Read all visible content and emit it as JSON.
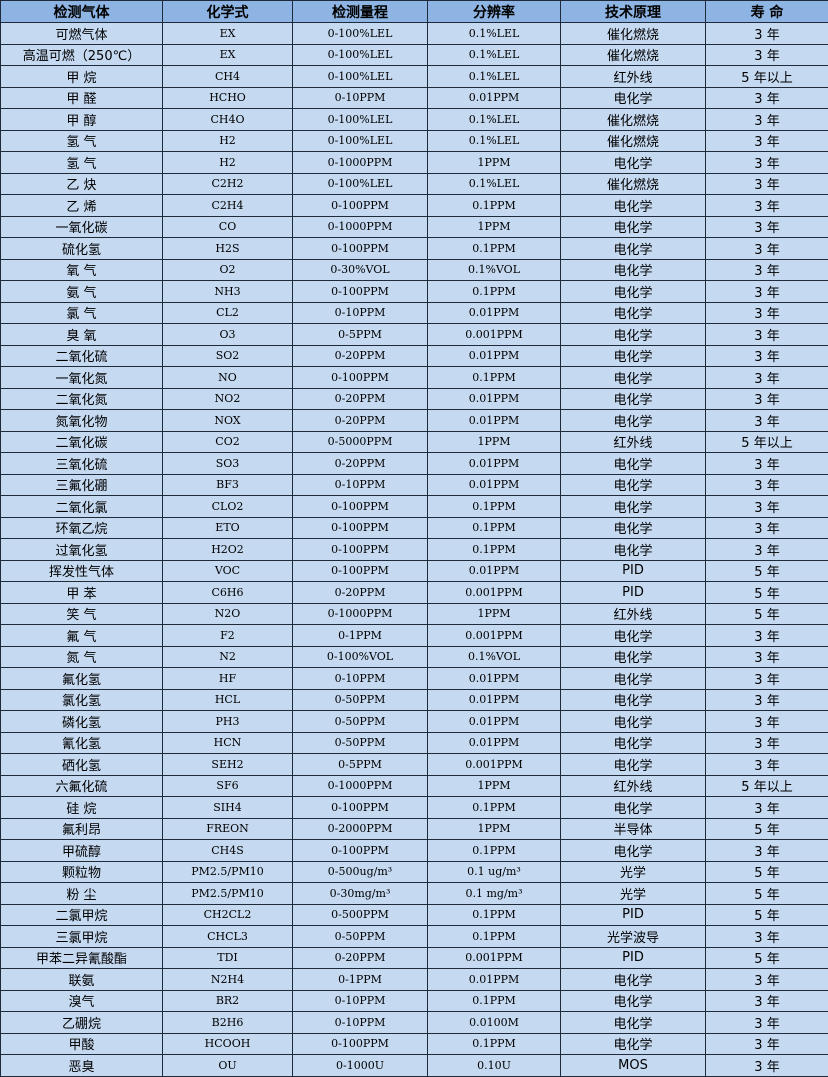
{
  "headers": [
    "检测气体",
    "化学式",
    "检测量程",
    "分辨率",
    "技术原理",
    "寿 命"
  ],
  "rows": [
    [
      "可燃气体",
      "EX",
      "0-100%LEL",
      "0.1%LEL",
      "催化燃烧",
      "3 年"
    ],
    [
      "高温可燃（250℃）",
      "EX",
      "0-100%LEL",
      "0.1%LEL",
      "催化燃烧",
      "3 年"
    ],
    [
      "甲 烷",
      "CH4",
      "0-100%LEL",
      "0.1%LEL",
      "红外线",
      "5 年以上"
    ],
    [
      "甲 醛",
      "HCHO",
      "0-10PPM",
      "0.01PPM",
      "电化学",
      "3 年"
    ],
    [
      "甲 醇",
      "CH4O",
      "0-100%LEL",
      "0.1%LEL",
      "催化燃烧",
      "3 年"
    ],
    [
      "氢 气",
      "H2",
      "0-100%LEL",
      "0.1%LEL",
      "催化燃烧",
      "3 年"
    ],
    [
      "氢 气",
      "H2",
      "0-1000PPM",
      "1PPM",
      "电化学",
      "3 年"
    ],
    [
      "乙 炔",
      "C2H2",
      "0-100%LEL",
      "0.1%LEL",
      "催化燃烧",
      "3 年"
    ],
    [
      "乙 烯",
      "C2H4",
      "0-100PPM",
      "0.1PPM",
      "电化学",
      "3 年"
    ],
    [
      "一氧化碳",
      "CO",
      "0-1000PPM",
      "1PPM",
      "电化学",
      "3 年"
    ],
    [
      "硫化氢",
      "H2S",
      "0-100PPM",
      "0.1PPM",
      "电化学",
      "3 年"
    ],
    [
      "氧 气",
      "O2",
      "0-30%VOL",
      "0.1%VOL",
      "电化学",
      "3 年"
    ],
    [
      "氨 气",
      "NH3",
      "0-100PPM",
      "0.1PPM",
      "电化学",
      "3 年"
    ],
    [
      "氯 气",
      "CL2",
      "0-10PPM",
      "0.01PPM",
      "电化学",
      "3 年"
    ],
    [
      "臭 氧",
      "O3",
      "0-5PPM",
      "0.001PPM",
      "电化学",
      "3 年"
    ],
    [
      "二氧化硫",
      "SO2",
      "0-20PPM",
      "0.01PPM",
      "电化学",
      "3 年"
    ],
    [
      "一氧化氮",
      "NO",
      "0-100PPM",
      "0.1PPM",
      "电化学",
      "3 年"
    ],
    [
      "二氧化氮",
      "NO2",
      "0-20PPM",
      "0.01PPM",
      "电化学",
      "3 年"
    ],
    [
      "氮氧化物",
      "NOX",
      "0-20PPM",
      "0.01PPM",
      "电化学",
      "3 年"
    ],
    [
      "二氧化碳",
      "CO2",
      "0-5000PPM",
      "1PPM",
      "红外线",
      "5 年以上"
    ],
    [
      "三氧化硫",
      "SO3",
      "0-20PPM",
      "0.01PPM",
      "电化学",
      "3 年"
    ],
    [
      "三氟化硼",
      "BF3",
      "0-10PPM",
      "0.01PPM",
      "电化学",
      "3 年"
    ],
    [
      "二氧化氯",
      "CLO2",
      "0-100PPM",
      "0.1PPM",
      "电化学",
      "3 年"
    ],
    [
      "环氧乙烷",
      "ETO",
      "0-100PPM",
      "0.1PPM",
      "电化学",
      "3 年"
    ],
    [
      "过氧化氢",
      "H2O2",
      "0-100PPM",
      "0.1PPM",
      "电化学",
      "3 年"
    ],
    [
      "挥发性气体",
      "VOC",
      "0-100PPM",
      "0.01PPM",
      "PID",
      "5 年"
    ],
    [
      "甲 苯",
      "C6H6",
      "0-20PPM",
      "0.001PPM",
      "PID",
      "5 年"
    ],
    [
      "笑 气",
      "N2O",
      "0-1000PPM",
      "1PPM",
      "红外线",
      "5 年"
    ],
    [
      "氟 气",
      "F2",
      "0-1PPM",
      "0.001PPM",
      "电化学",
      "3 年"
    ],
    [
      "氮 气",
      "N2",
      "0-100%VOL",
      "0.1%VOL",
      "电化学",
      "3 年"
    ],
    [
      "氟化氢",
      "HF",
      "0-10PPM",
      "0.01PPM",
      "电化学",
      "3 年"
    ],
    [
      "氯化氢",
      "HCL",
      "0-50PPM",
      "0.01PPM",
      "电化学",
      "3 年"
    ],
    [
      "磷化氢",
      "PH3",
      "0-50PPM",
      "0.01PPM",
      "电化学",
      "3 年"
    ],
    [
      "氰化氢",
      "HCN",
      "0-50PPM",
      "0.01PPM",
      "电化学",
      "3 年"
    ],
    [
      "硒化氢",
      "SEH2",
      "0-5PPM",
      "0.001PPM",
      "电化学",
      "3 年"
    ],
    [
      "六氟化硫",
      "SF6",
      "0-1000PPM",
      "1PPM",
      "红外线",
      "5 年以上"
    ],
    [
      "硅 烷",
      "SIH4",
      "0-100PPM",
      "0.1PPM",
      "电化学",
      "3 年"
    ],
    [
      "氟利昂",
      "FREON",
      "0-2000PPM",
      "1PPM",
      "半导体",
      "5 年"
    ],
    [
      "甲硫醇",
      "CH4S",
      "0-100PPM",
      "0.1PPM",
      "电化学",
      "3 年"
    ],
    [
      "颗粒物",
      "PM2.5/PM10",
      "0-500ug/m³",
      "0.1 ug/m³",
      "光学",
      "5 年"
    ],
    [
      "粉 尘",
      "PM2.5/PM10",
      "0-30mg/m³",
      "0.1 mg/m³",
      "光学",
      "5 年"
    ],
    [
      "二氯甲烷",
      "CH2CL2",
      "0-500PPM",
      "0.1PPM",
      "PID",
      "5 年"
    ],
    [
      "三氯甲烷",
      "CHCL3",
      "0-50PPM",
      "0.1PPM",
      "光学波导",
      "3 年"
    ],
    [
      "甲苯二异氰酸酯",
      "TDI",
      "0-20PPM",
      "0.001PPM",
      "PID",
      "5 年"
    ],
    [
      "联氨",
      "N2H4",
      "0-1PPM",
      "0.01PPM",
      "电化学",
      "3 年"
    ],
    [
      "溴气",
      "BR2",
      "0-10PPM",
      "0.1PPM",
      "电化学",
      "3 年"
    ],
    [
      "乙硼烷",
      "B2H6",
      "0-10PPM",
      "0.0100M",
      "电化学",
      "3 年"
    ],
    [
      "甲酸",
      "HCOOH",
      "0-100PPM",
      "0.1PPM",
      "电化学",
      "3 年"
    ],
    [
      "恶臭",
      "OU",
      "0-1000U",
      "0.10U",
      "MOS",
      "3 年"
    ]
  ]
}
